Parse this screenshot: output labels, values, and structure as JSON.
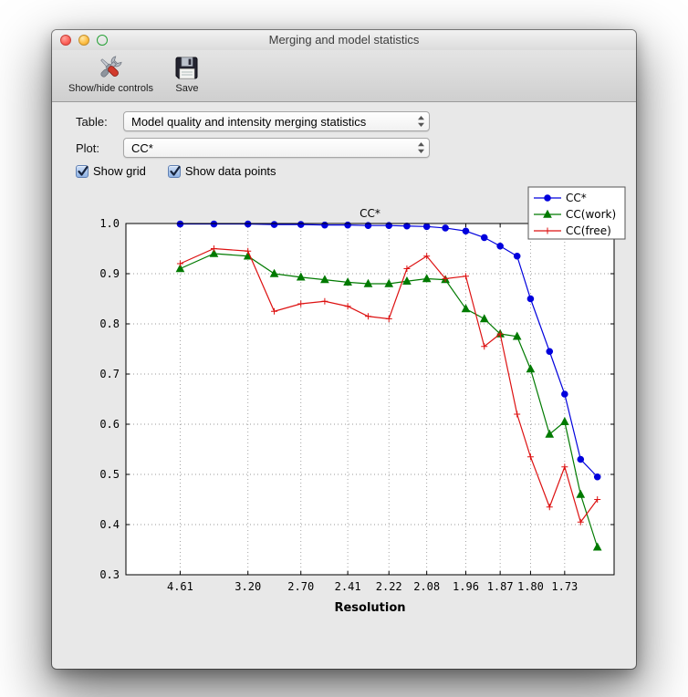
{
  "window": {
    "title": "Merging and model statistics"
  },
  "toolbar": {
    "items": [
      {
        "label": "Show/hide controls",
        "icon": "tools-icon"
      },
      {
        "label": "Save",
        "icon": "save-icon"
      }
    ]
  },
  "controls": {
    "table_label": "Table:",
    "table_value": "Model quality and intensity merging statistics",
    "plot_label": "Plot:",
    "plot_value": "CC*",
    "checkboxes": [
      {
        "label": "Show grid",
        "checked": true
      },
      {
        "label": "Show data points",
        "checked": true
      }
    ]
  },
  "chart_data": {
    "type": "line",
    "title": "CC*",
    "xlabel": "Resolution",
    "ylabel": "",
    "ylim": [
      0.3,
      1.0
    ],
    "yticks": [
      0.3,
      0.4,
      0.5,
      0.6,
      0.7,
      0.8,
      0.9,
      1.0
    ],
    "grid": true,
    "legend_position": "top-right",
    "x_axis_scale": "1/d^2",
    "x_resolutions": [
      4.61,
      3.72,
      3.2,
      2.92,
      2.7,
      2.54,
      2.41,
      2.31,
      2.22,
      2.15,
      2.08,
      2.02,
      1.96,
      1.91,
      1.87,
      1.83,
      1.8,
      1.76,
      1.73,
      1.7,
      1.67
    ],
    "xtick_indices": [
      0,
      2,
      4,
      6,
      8,
      10,
      12,
      14,
      16,
      18
    ],
    "xtick_labels": [
      "4.61",
      "3.20",
      "2.70",
      "2.41",
      "2.22",
      "2.08",
      "1.96",
      "1.87",
      "1.80",
      "1.73"
    ],
    "series": [
      {
        "name": "CC*",
        "color": "#0000dd",
        "marker": "circle",
        "values": [
          0.999,
          0.999,
          0.999,
          0.998,
          0.998,
          0.997,
          0.997,
          0.996,
          0.996,
          0.995,
          0.994,
          0.991,
          0.985,
          0.972,
          0.955,
          0.935,
          0.85,
          0.745,
          0.66,
          0.53,
          0.495
        ]
      },
      {
        "name": "CC(work)",
        "color": "#007a00",
        "marker": "triangle",
        "values": [
          0.91,
          0.94,
          0.935,
          0.9,
          0.893,
          0.888,
          0.883,
          0.88,
          0.88,
          0.885,
          0.89,
          0.888,
          0.83,
          0.81,
          0.78,
          0.775,
          0.71,
          0.58,
          0.605,
          0.46,
          0.355
        ]
      },
      {
        "name": "CC(free)",
        "color": "#dd1111",
        "marker": "plus",
        "values": [
          0.92,
          0.95,
          0.945,
          0.825,
          0.84,
          0.845,
          0.835,
          0.815,
          0.81,
          0.91,
          0.935,
          0.89,
          0.895,
          0.755,
          0.78,
          0.62,
          0.535,
          0.435,
          0.515,
          0.405,
          0.45
        ]
      }
    ]
  }
}
